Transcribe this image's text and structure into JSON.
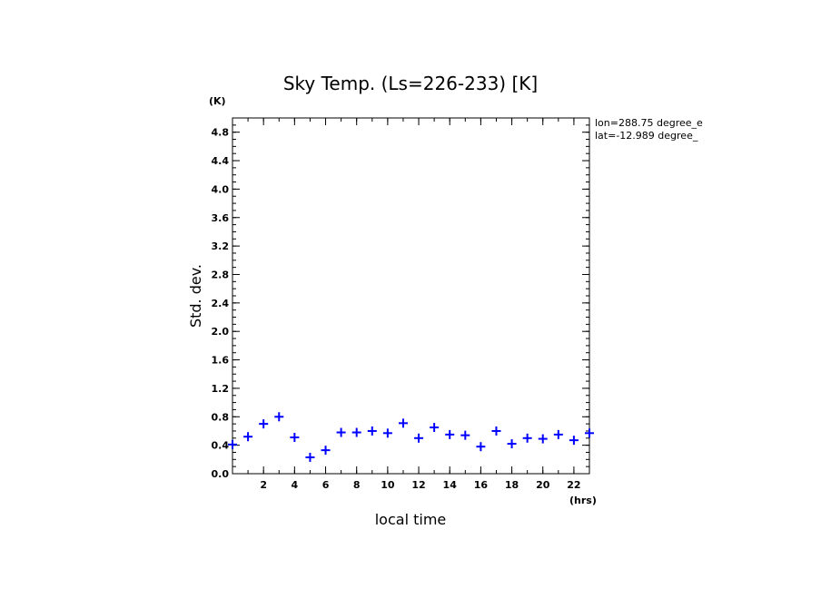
{
  "chart_data": {
    "type": "scatter",
    "title": "Sky Temp. (Ls=226-233) [K]",
    "xlabel": "local time",
    "ylabel": "Std. dev.",
    "x_unit": "(hrs)",
    "y_unit": "(K)",
    "xlim": [
      0,
      23
    ],
    "ylim": [
      0,
      5
    ],
    "x_ticks": [
      2,
      4,
      6,
      8,
      10,
      12,
      14,
      16,
      18,
      20,
      22
    ],
    "y_ticks": [
      "0.0",
      "0.4",
      "0.8",
      "1.2",
      "1.6",
      "2.0",
      "2.4",
      "2.8",
      "3.2",
      "3.6",
      "4.0",
      "4.4",
      "4.8"
    ],
    "marker": "+",
    "color": "#0000ff",
    "series": [
      {
        "x": [
          0.0,
          1.0,
          2.0,
          3.0,
          4.0,
          5.0,
          6.0,
          7.0,
          8.0,
          9.0,
          10.0,
          11.0,
          12.0,
          13.0,
          14.0,
          15.0,
          16.0,
          17.0,
          18.0,
          19.0,
          20.0,
          21.0,
          22.0,
          23.0
        ],
        "y": [
          0.41,
          0.52,
          0.7,
          0.8,
          0.51,
          0.23,
          0.33,
          0.58,
          0.58,
          0.6,
          0.57,
          0.71,
          0.5,
          0.65,
          0.55,
          0.54,
          0.38,
          0.6,
          0.42,
          0.5,
          0.49,
          0.55,
          0.47,
          0.57
        ]
      }
    ],
    "annotations": [
      "lon=288.75 degree_e",
      "lat=-12.989 degree_"
    ]
  }
}
